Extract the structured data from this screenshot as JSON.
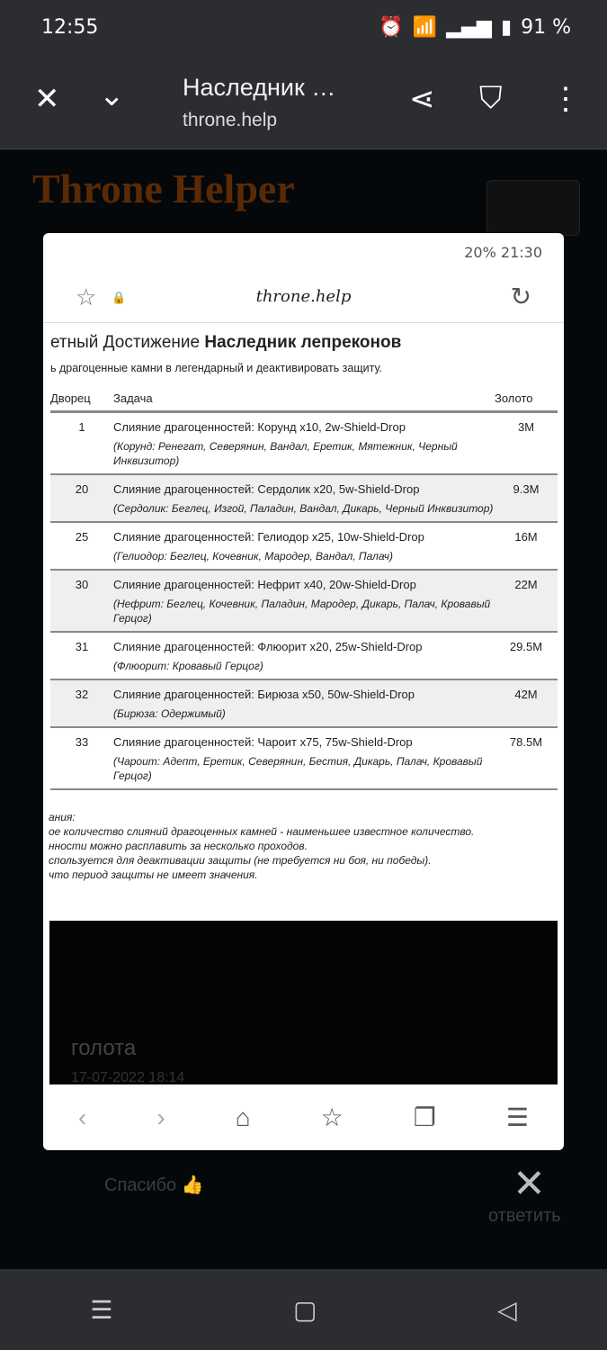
{
  "status": {
    "time": "12:55",
    "battery": "91 %"
  },
  "browser": {
    "title": "Наследник …",
    "url": "throne.help"
  },
  "background": {
    "logo": "Throne Helper",
    "user": "голота",
    "date": "17-07-2022 18:14",
    "comment": "Спасибо 👍",
    "reply": "ответить"
  },
  "screenshot": {
    "status": "20% 21:30",
    "host": "throne.help",
    "heading_prefix": "етный Достижение ",
    "heading_bold": "Наследник лепреконов",
    "subtitle": "ь драгоценные камни в легендарный и деактивировать защиту.",
    "columns": {
      "palace": "Дворец",
      "task": "Задача",
      "gold": "Золото"
    },
    "rows": [
      {
        "palace": "1",
        "task": "Слияние драгоценностей: Корунд x10, 2w-Shield-Drop",
        "mobs": "(Корунд: Ренегат, Северянин, Вандал, Еретик, Мятежник, Черный Инквизитор)",
        "gold": "3M"
      },
      {
        "palace": "20",
        "task": "Слияние драгоценностей: Сердолик x20, 5w-Shield-Drop",
        "mobs": "(Сердолик: Беглец, Изгой, Паладин, Вандал, Дикарь, Черный Инквизитор)",
        "gold": "9.3M"
      },
      {
        "palace": "25",
        "task": "Слияние драгоценностей: Гелиодор x25, 10w-Shield-Drop",
        "mobs": "(Гелиодор: Беглец, Кочевник, Мародер, Вандал, Палач)",
        "gold": "16M"
      },
      {
        "palace": "30",
        "task": "Слияние драгоценностей: Нефрит x40, 20w-Shield-Drop",
        "mobs": "(Нефрит: Беглец, Кочевник, Паладин, Мародер, Дикарь, Палач, Кровавый Герцог)",
        "gold": "22M"
      },
      {
        "palace": "31",
        "task": "Слияние драгоценностей: Флюорит x20, 25w-Shield-Drop",
        "mobs": "(Флюорит: Кровавый Герцог)",
        "gold": "29.5M"
      },
      {
        "palace": "32",
        "task": "Слияние драгоценностей: Бирюза x50, 50w-Shield-Drop",
        "mobs": "(Бирюза: Одержимый)",
        "gold": "42M"
      },
      {
        "palace": "33",
        "task": "Слияние драгоценностей: Чароит x75, 75w-Shield-Drop",
        "mobs": "(Чароит: Адепт, Еретик, Северянин, Бестия, Дикарь, Палач, Кровавый Герцог)",
        "gold": "78.5M"
      }
    ],
    "notes": [
      "ания:",
      "ое количество слияний драгоценных камней - наименьшее известное количество.",
      "нности можно расплавить за несколько проходов.",
      "спользуется для деактивации защиты (не требуется ни боя, ни победы).",
      "что период защиты не имеет значения."
    ]
  }
}
